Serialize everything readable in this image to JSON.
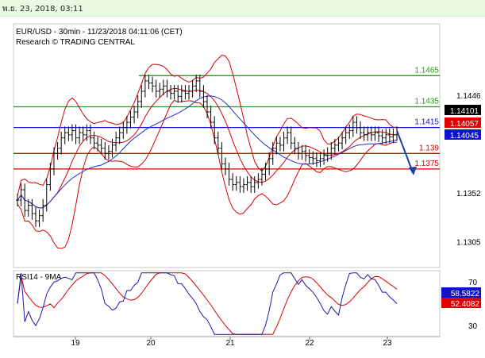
{
  "header": {
    "datetime": "พ.ย. 23, 2018, 03:11"
  },
  "colors": {
    "price": "#000000",
    "ma": "#1f2fd6",
    "bb": "#d40000",
    "resistance": "#2a9a1a",
    "pivot": "#1010e0",
    "support": "#d40000",
    "forecast": "#1a3fa8",
    "rsi": "#1a1aa8",
    "rsi_ma": "#d40000"
  },
  "chart_data": [
    {
      "type": "line",
      "subtype": "candlestick",
      "title": "EUR/USD - 30min - 11/23/2018 04:11:06 (CET)",
      "subtitle": "Research © TRADING CENTRAL",
      "x_ticks": [
        "19",
        "20",
        "21",
        "22",
        "23"
      ],
      "y_ticks": [
        1.1446,
        1.1352,
        1.1305
      ],
      "ylim": [
        1.128,
        1.1515
      ],
      "levels": [
        {
          "label": "1.1465",
          "value": 1.1465,
          "kind": "resistance"
        },
        {
          "label": "1.1435",
          "value": 1.1435,
          "kind": "resistance"
        },
        {
          "label": "1.1415",
          "value": 1.1415,
          "kind": "pivot"
        },
        {
          "label": "1.139",
          "value": 1.139,
          "kind": "support"
        },
        {
          "label": "1.1375",
          "value": 1.1375,
          "kind": "support"
        }
      ],
      "price_tags": [
        {
          "label": "1.14101",
          "value": 1.14101,
          "style": "black"
        },
        {
          "label": "1.14057",
          "value": 1.14057,
          "style": "red"
        },
        {
          "label": "1.14045",
          "value": 1.14045,
          "style": "blue"
        }
      ],
      "series": [
        {
          "values": [
            1.1345,
            1.1355,
            1.1335,
            1.134,
            1.1332,
            1.1325,
            1.133,
            1.134,
            1.136,
            1.1375,
            1.139,
            1.1395,
            1.1405,
            1.141,
            1.1408,
            1.1412,
            1.1405,
            1.141,
            1.1408,
            1.1412,
            1.1405,
            1.14,
            1.1398,
            1.1395,
            1.139,
            1.1392,
            1.1398,
            1.1405,
            1.141,
            1.1415,
            1.142,
            1.1425,
            1.143,
            1.144,
            1.145,
            1.146,
            1.1458,
            1.1455,
            1.145,
            1.1452,
            1.1455,
            1.145,
            1.1448,
            1.145,
            1.1445,
            1.145,
            1.1448,
            1.145,
            1.1455,
            1.146,
            1.145,
            1.144,
            1.143,
            1.142,
            1.1405,
            1.1395,
            1.138,
            1.1375,
            1.1365,
            1.136,
            1.1362,
            1.1358,
            1.136,
            1.1362,
            1.1358,
            1.1362,
            1.1365,
            1.137,
            1.1375,
            1.1385,
            1.1395,
            1.14,
            1.1398,
            1.1405,
            1.141,
            1.14,
            1.1395,
            1.139,
            1.1392,
            1.1388,
            1.1386,
            1.1385,
            1.1383,
            1.1385,
            1.1388,
            1.139,
            1.1395,
            1.1398,
            1.14,
            1.1405,
            1.141,
            1.1412,
            1.142,
            1.1415,
            1.141,
            1.1408,
            1.141,
            1.1408,
            1.141,
            1.1407,
            1.1405,
            1.1408,
            1.1406,
            1.1408,
            1.141
          ]
        }
      ],
      "forecast": {
        "from": 1.1412,
        "to": 1.1375
      }
    },
    {
      "type": "line",
      "title": "RSI14 - 9MA",
      "y_ticks": [
        70,
        50,
        30
      ],
      "ylim": [
        20,
        80
      ],
      "values_tags": [
        {
          "label": "58.5822",
          "value": 58.5822,
          "style": "blue"
        },
        {
          "label": "52.4082",
          "value": 52.4082,
          "style": "red"
        }
      ]
    }
  ]
}
